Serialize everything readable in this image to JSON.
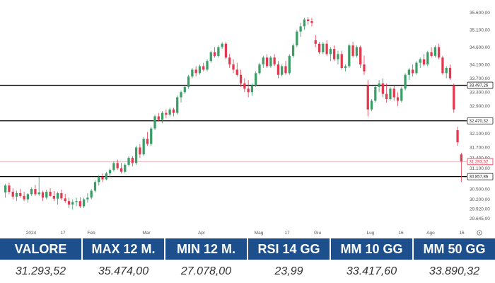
{
  "chart_data": {
    "type": "candlestick",
    "y_ticks": [
      "35.600,00",
      "35.100,00",
      "34.600,00",
      "34.100,00",
      "33.700,00",
      "33.300,00",
      "32.900,00",
      "32.100,00",
      "31.700,00",
      "31.400,00",
      "31.100,00",
      "30.500,00",
      "30.200,00",
      "29.920,00",
      "29.645,00"
    ],
    "x_ticks": [
      "2024",
      "17",
      "Feb",
      "Mar",
      "Apr",
      "Mag",
      "17",
      "Giu",
      "Lug",
      "16",
      "Ago",
      "16"
    ],
    "horizontal_lines": [
      {
        "label": "33.497,26",
        "value": 33497.26,
        "color": "#000000"
      },
      {
        "label": "32.470,32",
        "value": 32470.32,
        "color": "#000000"
      },
      {
        "label": "30.857,86",
        "value": 30857.86,
        "color": "#000000"
      },
      {
        "label": "31.293,52",
        "value": 31293.52,
        "color": "#e2394e"
      }
    ],
    "up_color": "#3b9e67",
    "down_color": "#e2394e",
    "candles": [
      {
        "o": 30400,
        "h": 30650,
        "l": 30250,
        "c": 30600
      },
      {
        "o": 30600,
        "h": 30680,
        "l": 30350,
        "c": 30420
      },
      {
        "o": 30420,
        "h": 30520,
        "l": 30200,
        "c": 30280
      },
      {
        "o": 30280,
        "h": 30450,
        "l": 30150,
        "c": 30380
      },
      {
        "o": 30380,
        "h": 30500,
        "l": 30250,
        "c": 30300
      },
      {
        "o": 30300,
        "h": 30420,
        "l": 30150,
        "c": 30200
      },
      {
        "o": 30200,
        "h": 30380,
        "l": 30100,
        "c": 30350
      },
      {
        "o": 30350,
        "h": 30550,
        "l": 30300,
        "c": 30500
      },
      {
        "o": 30500,
        "h": 30620,
        "l": 30300,
        "c": 30350
      },
      {
        "o": 30350,
        "h": 30850,
        "l": 30300,
        "c": 30400
      },
      {
        "o": 30400,
        "h": 30450,
        "l": 30150,
        "c": 30250
      },
      {
        "o": 30250,
        "h": 30480,
        "l": 30200,
        "c": 30420
      },
      {
        "o": 30420,
        "h": 30520,
        "l": 30280,
        "c": 30300
      },
      {
        "o": 30300,
        "h": 30440,
        "l": 30150,
        "c": 30220
      },
      {
        "o": 30220,
        "h": 30420,
        "l": 30050,
        "c": 30380
      },
      {
        "o": 30380,
        "h": 30480,
        "l": 30180,
        "c": 30230
      },
      {
        "o": 30230,
        "h": 30360,
        "l": 30100,
        "c": 30150
      },
      {
        "o": 30150,
        "h": 30250,
        "l": 29950,
        "c": 30050
      },
      {
        "o": 30050,
        "h": 30200,
        "l": 29900,
        "c": 30120
      },
      {
        "o": 30120,
        "h": 30250,
        "l": 30000,
        "c": 30150
      },
      {
        "o": 30150,
        "h": 30260,
        "l": 29950,
        "c": 30000
      },
      {
        "o": 30000,
        "h": 30250,
        "l": 29950,
        "c": 30200
      },
      {
        "o": 30200,
        "h": 30380,
        "l": 30100,
        "c": 30250
      },
      {
        "o": 30250,
        "h": 30500,
        "l": 30200,
        "c": 30450
      },
      {
        "o": 30450,
        "h": 30750,
        "l": 30400,
        "c": 30700
      },
      {
        "o": 30700,
        "h": 30900,
        "l": 30600,
        "c": 30850
      },
      {
        "o": 30850,
        "h": 30950,
        "l": 30700,
        "c": 30780
      },
      {
        "o": 30780,
        "h": 31000,
        "l": 30750,
        "c": 30950
      },
      {
        "o": 30950,
        "h": 31100,
        "l": 30850,
        "c": 31050
      },
      {
        "o": 31050,
        "h": 31300,
        "l": 31000,
        "c": 31250
      },
      {
        "o": 31250,
        "h": 31350,
        "l": 31050,
        "c": 31100
      },
      {
        "o": 31100,
        "h": 31250,
        "l": 30950,
        "c": 31000
      },
      {
        "o": 31000,
        "h": 31250,
        "l": 30950,
        "c": 31200
      },
      {
        "o": 31200,
        "h": 31450,
        "l": 31150,
        "c": 31400
      },
      {
        "o": 31400,
        "h": 31450,
        "l": 31150,
        "c": 31250
      },
      {
        "o": 31250,
        "h": 31750,
        "l": 31200,
        "c": 31700
      },
      {
        "o": 31700,
        "h": 31800,
        "l": 31400,
        "c": 31500
      },
      {
        "o": 31500,
        "h": 32000,
        "l": 31450,
        "c": 31950
      },
      {
        "o": 31950,
        "h": 32150,
        "l": 31750,
        "c": 31800
      },
      {
        "o": 31800,
        "h": 32300,
        "l": 31750,
        "c": 32250
      },
      {
        "o": 32250,
        "h": 32650,
        "l": 32200,
        "c": 32600
      },
      {
        "o": 32600,
        "h": 32700,
        "l": 32450,
        "c": 32500
      },
      {
        "o": 32500,
        "h": 32750,
        "l": 32400,
        "c": 32700
      },
      {
        "o": 32700,
        "h": 32800,
        "l": 32550,
        "c": 32650
      },
      {
        "o": 32650,
        "h": 32850,
        "l": 32600,
        "c": 32800
      },
      {
        "o": 32800,
        "h": 32850,
        "l": 32600,
        "c": 32700
      },
      {
        "o": 32700,
        "h": 33200,
        "l": 32650,
        "c": 33150
      },
      {
        "o": 33150,
        "h": 33350,
        "l": 33000,
        "c": 33300
      },
      {
        "o": 33300,
        "h": 33500,
        "l": 33250,
        "c": 33450
      },
      {
        "o": 33450,
        "h": 33800,
        "l": 33400,
        "c": 33750
      },
      {
        "o": 33750,
        "h": 34000,
        "l": 33700,
        "c": 33950
      },
      {
        "o": 33950,
        "h": 34050,
        "l": 33750,
        "c": 33850
      },
      {
        "o": 33850,
        "h": 34100,
        "l": 33800,
        "c": 34050
      },
      {
        "o": 34050,
        "h": 34150,
        "l": 33900,
        "c": 33950
      },
      {
        "o": 33950,
        "h": 34250,
        "l": 33900,
        "c": 34200
      },
      {
        "o": 34200,
        "h": 34500,
        "l": 34150,
        "c": 34450
      },
      {
        "o": 34450,
        "h": 34600,
        "l": 34300,
        "c": 34350
      },
      {
        "o": 34350,
        "h": 34650,
        "l": 34300,
        "c": 34600
      },
      {
        "o": 34600,
        "h": 34750,
        "l": 34550,
        "c": 34700
      },
      {
        "o": 34700,
        "h": 34750,
        "l": 34250,
        "c": 34300
      },
      {
        "o": 34300,
        "h": 34400,
        "l": 34000,
        "c": 34100
      },
      {
        "o": 34100,
        "h": 34250,
        "l": 33850,
        "c": 33950
      },
      {
        "o": 33950,
        "h": 34150,
        "l": 33750,
        "c": 33800
      },
      {
        "o": 33800,
        "h": 33950,
        "l": 33450,
        "c": 33550
      },
      {
        "o": 33550,
        "h": 33700,
        "l": 33300,
        "c": 33400
      },
      {
        "o": 33400,
        "h": 33650,
        "l": 33150,
        "c": 33300
      },
      {
        "o": 33300,
        "h": 33550,
        "l": 33200,
        "c": 33500
      },
      {
        "o": 33500,
        "h": 33900,
        "l": 33450,
        "c": 33850
      },
      {
        "o": 33850,
        "h": 34150,
        "l": 33800,
        "c": 34100
      },
      {
        "o": 34100,
        "h": 34350,
        "l": 34000,
        "c": 34300
      },
      {
        "o": 34300,
        "h": 34400,
        "l": 34000,
        "c": 34050
      },
      {
        "o": 34050,
        "h": 34350,
        "l": 34000,
        "c": 34300
      },
      {
        "o": 34300,
        "h": 34400,
        "l": 34050,
        "c": 34100
      },
      {
        "o": 34100,
        "h": 34200,
        "l": 33700,
        "c": 33800
      },
      {
        "o": 33800,
        "h": 34100,
        "l": 33750,
        "c": 34050
      },
      {
        "o": 34050,
        "h": 34200,
        "l": 33800,
        "c": 33850
      },
      {
        "o": 33850,
        "h": 34400,
        "l": 33800,
        "c": 34350
      },
      {
        "o": 34350,
        "h": 34700,
        "l": 34300,
        "c": 34650
      },
      {
        "o": 34650,
        "h": 35100,
        "l": 34600,
        "c": 35050
      },
      {
        "o": 35050,
        "h": 35300,
        "l": 34900,
        "c": 35200
      },
      {
        "o": 35200,
        "h": 35450,
        "l": 35100,
        "c": 35400
      },
      {
        "o": 35400,
        "h": 35474,
        "l": 35250,
        "c": 35350
      },
      {
        "o": 35350,
        "h": 35450,
        "l": 35200,
        "c": 35300
      },
      {
        "o": 34800,
        "h": 34950,
        "l": 34600,
        "c": 34700
      },
      {
        "o": 34700,
        "h": 34750,
        "l": 34400,
        "c": 34450
      },
      {
        "o": 34450,
        "h": 34750,
        "l": 34400,
        "c": 34700
      },
      {
        "o": 34700,
        "h": 34800,
        "l": 34350,
        "c": 34400
      },
      {
        "o": 34400,
        "h": 34600,
        "l": 34200,
        "c": 34550
      },
      {
        "o": 34550,
        "h": 34650,
        "l": 34200,
        "c": 34250
      },
      {
        "o": 34250,
        "h": 34500,
        "l": 34100,
        "c": 34400
      },
      {
        "o": 34400,
        "h": 34500,
        "l": 33950,
        "c": 34000
      },
      {
        "o": 34000,
        "h": 34100,
        "l": 33900,
        "c": 34050
      },
      {
        "o": 34050,
        "h": 34700,
        "l": 34000,
        "c": 34650
      },
      {
        "o": 34650,
        "h": 34750,
        "l": 34300,
        "c": 34350
      },
      {
        "o": 34350,
        "h": 34650,
        "l": 34300,
        "c": 34600
      },
      {
        "o": 34600,
        "h": 34650,
        "l": 34000,
        "c": 34100
      },
      {
        "o": 34100,
        "h": 34350,
        "l": 33800,
        "c": 33900
      },
      {
        "o": 33500,
        "h": 33650,
        "l": 32600,
        "c": 32800
      },
      {
        "o": 32800,
        "h": 33100,
        "l": 32750,
        "c": 33050
      },
      {
        "o": 33050,
        "h": 33500,
        "l": 33000,
        "c": 33450
      },
      {
        "o": 33450,
        "h": 33650,
        "l": 33300,
        "c": 33550
      },
      {
        "o": 33550,
        "h": 33700,
        "l": 33150,
        "c": 33250
      },
      {
        "o": 33250,
        "h": 33550,
        "l": 33000,
        "c": 33100
      },
      {
        "o": 33100,
        "h": 33450,
        "l": 33050,
        "c": 33400
      },
      {
        "o": 33400,
        "h": 33500,
        "l": 33050,
        "c": 33150
      },
      {
        "o": 33150,
        "h": 33300,
        "l": 32900,
        "c": 33050
      },
      {
        "o": 33050,
        "h": 33450,
        "l": 33000,
        "c": 33400
      },
      {
        "o": 33400,
        "h": 33850,
        "l": 33350,
        "c": 33800
      },
      {
        "o": 33800,
        "h": 34000,
        "l": 33650,
        "c": 33950
      },
      {
        "o": 33950,
        "h": 34100,
        "l": 33750,
        "c": 33850
      },
      {
        "o": 33850,
        "h": 34200,
        "l": 33800,
        "c": 34150
      },
      {
        "o": 34150,
        "h": 34300,
        "l": 34000,
        "c": 34250
      },
      {
        "o": 34250,
        "h": 34400,
        "l": 34050,
        "c": 34100
      },
      {
        "o": 34100,
        "h": 34500,
        "l": 34050,
        "c": 34450
      },
      {
        "o": 34450,
        "h": 34600,
        "l": 34300,
        "c": 34350
      },
      {
        "o": 34350,
        "h": 34650,
        "l": 34300,
        "c": 34600
      },
      {
        "o": 34600,
        "h": 34700,
        "l": 34250,
        "c": 34300
      },
      {
        "o": 34300,
        "h": 34350,
        "l": 33800,
        "c": 33850
      },
      {
        "o": 33850,
        "h": 34050,
        "l": 33700,
        "c": 34000
      },
      {
        "o": 34000,
        "h": 34100,
        "l": 33650,
        "c": 33700
      },
      {
        "o": 33500,
        "h": 33550,
        "l": 32700,
        "c": 32800
      },
      {
        "o": 32200,
        "h": 32300,
        "l": 31750,
        "c": 31850
      },
      {
        "o": 31500,
        "h": 31550,
        "l": 30700,
        "c": 31293
      }
    ]
  },
  "stats": [
    {
      "label": "VALORE",
      "value": "31.293,52"
    },
    {
      "label": "MAX 12 M.",
      "value": "35.474,00"
    },
    {
      "label": "MIN 12 M.",
      "value": "27.078,00"
    },
    {
      "label": "RSI 14 GG",
      "value": "23,99"
    },
    {
      "label": "MM 10 GG",
      "value": "33.417,60"
    },
    {
      "label": "MM 50 GG",
      "value": "33.890,32"
    }
  ],
  "colors": {
    "header_bg": "#1c4f8c"
  },
  "icons": [
    "settings-icon"
  ]
}
